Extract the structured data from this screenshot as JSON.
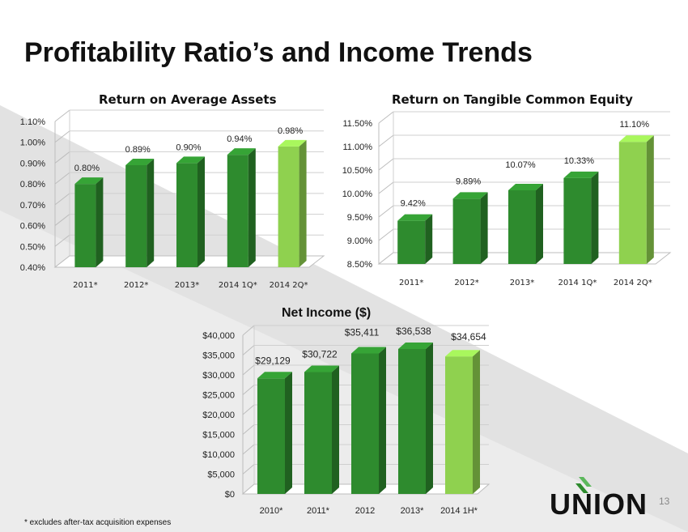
{
  "slide": {
    "title": "Profitability Ratio’s and Income Trends",
    "footnote": "* excludes after-tax acquisition expenses",
    "page_number": "13",
    "logo_text": "UNION"
  },
  "colors": {
    "bar_dark": "#2e8b2e",
    "bar_highlight": "#8fd14f",
    "band": "#e6e6e6"
  },
  "chart_data": [
    {
      "type": "bar",
      "title": "Return on Average Assets",
      "categories": [
        "2011*",
        "2012*",
        "2013*",
        "2014 1Q*",
        "2014 2Q*"
      ],
      "values": [
        0.8,
        0.89,
        0.9,
        0.94,
        0.98
      ],
      "data_labels": [
        "0.80%",
        "0.89%",
        "0.90%",
        "0.94%",
        "0.98%"
      ],
      "yticks": [
        "0.40%",
        "0.50%",
        "0.60%",
        "0.70%",
        "0.80%",
        "0.90%",
        "1.00%",
        "1.10%"
      ],
      "ylim": [
        0.4,
        1.1
      ],
      "highlight_index": 4,
      "grid": true,
      "style": "3d"
    },
    {
      "type": "bar",
      "title": "Return on Tangible Common Equity",
      "categories": [
        "2011*",
        "2012*",
        "2013*",
        "2014 1Q*",
        "2014 2Q*"
      ],
      "values": [
        9.42,
        9.89,
        10.07,
        10.33,
        11.1
      ],
      "data_labels": [
        "9.42%",
        "9.89%",
        "10.07%",
        "10.33%",
        "11.10%"
      ],
      "yticks": [
        "8.50%",
        "9.00%",
        "9.50%",
        "10.00%",
        "10.50%",
        "11.00%",
        "11.50%"
      ],
      "ylim": [
        8.5,
        11.5
      ],
      "highlight_index": 4,
      "grid": true,
      "style": "3d"
    },
    {
      "type": "bar",
      "title": "Net Income ($)",
      "categories": [
        "2010*",
        "2011*",
        "2012",
        "2013*",
        "2014 1H*"
      ],
      "values": [
        29129,
        30722,
        35411,
        36538,
        34654
      ],
      "data_labels": [
        "$29,129",
        "$30,722",
        "$35,411",
        "$36,538",
        "$34,654"
      ],
      "yticks": [
        "$0",
        "$5,000",
        "$10,000",
        "$15,000",
        "$20,000",
        "$25,000",
        "$30,000",
        "$35,000",
        "$40,000"
      ],
      "ylim": [
        0,
        40000
      ],
      "highlight_index": 4,
      "grid": true,
      "style": "3d"
    }
  ]
}
